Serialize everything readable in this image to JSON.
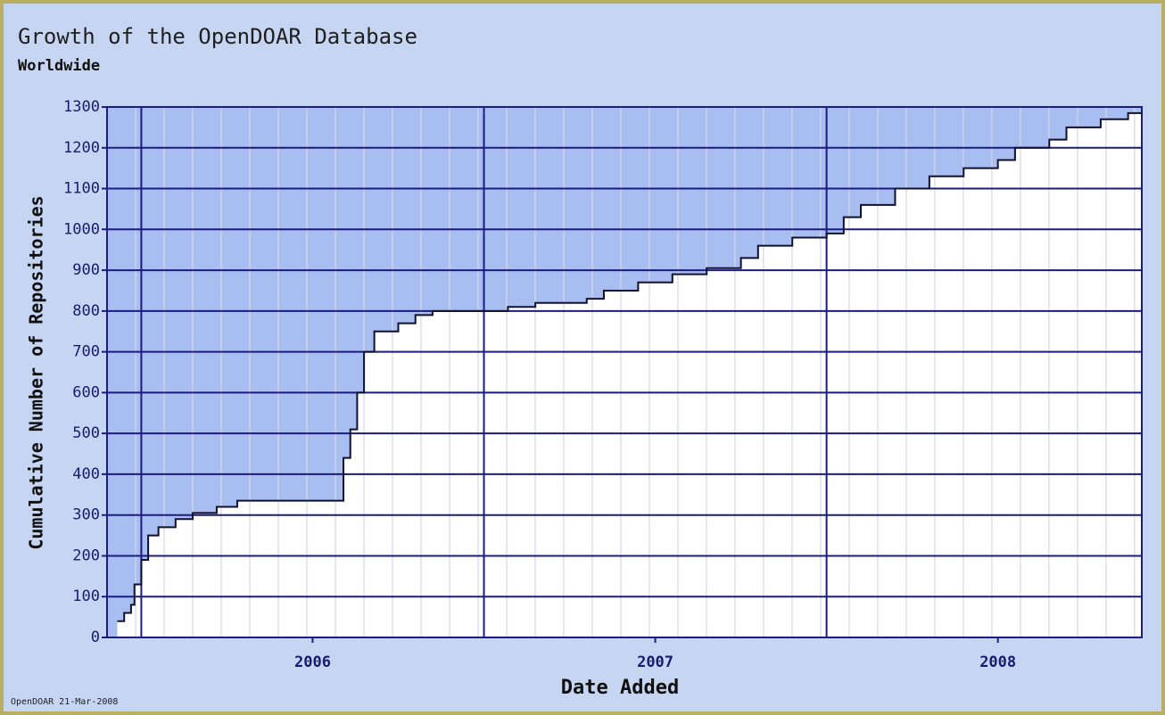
{
  "chart_data": {
    "type": "step-area",
    "title": "Growth of the OpenDOAR Database",
    "subtitle": "Worldwide",
    "y_label": "Cumulative Number of Repositories",
    "x_label": "Date Added",
    "footer": "OpenDOAR 21-Mar-2008",
    "x": [
      2005.43,
      2005.45,
      2005.47,
      2005.48,
      2005.5,
      2005.52,
      2005.55,
      2005.6,
      2005.65,
      2005.72,
      2005.78,
      2006.08,
      2006.09,
      2006.11,
      2006.13,
      2006.15,
      2006.18,
      2006.25,
      2006.3,
      2006.35,
      2006.57,
      2006.65,
      2006.8,
      2006.85,
      2006.95,
      2007.05,
      2007.15,
      2007.25,
      2007.3,
      2007.4,
      2007.5,
      2007.55,
      2007.6,
      2007.7,
      2007.8,
      2007.9,
      2008.0,
      2008.05,
      2008.15,
      2008.2,
      2008.3,
      2008.38
    ],
    "values": [
      40,
      60,
      80,
      130,
      190,
      250,
      270,
      290,
      305,
      320,
      335,
      335,
      440,
      510,
      600,
      700,
      750,
      770,
      790,
      800,
      810,
      820,
      830,
      850,
      870,
      890,
      905,
      930,
      960,
      980,
      990,
      1030,
      1060,
      1100,
      1130,
      1150,
      1170,
      1200,
      1220,
      1250,
      1270,
      1285
    ],
    "line_color": "#101030",
    "fill_color": "#ffffff",
    "plot_background": "#a8bdf0",
    "xlim": [
      2005.4,
      2008.42
    ],
    "ylim": [
      0,
      1300
    ],
    "xticks": [
      2006,
      2007,
      2008
    ],
    "yticks": [
      0,
      100,
      200,
      300,
      400,
      500,
      600,
      700,
      800,
      900,
      1000,
      1100,
      1200,
      1300
    ],
    "x_major_grid": [
      2005.5,
      2006.5,
      2007.5
    ],
    "x_minor_grid_step": 0.0833,
    "grid": true
  }
}
